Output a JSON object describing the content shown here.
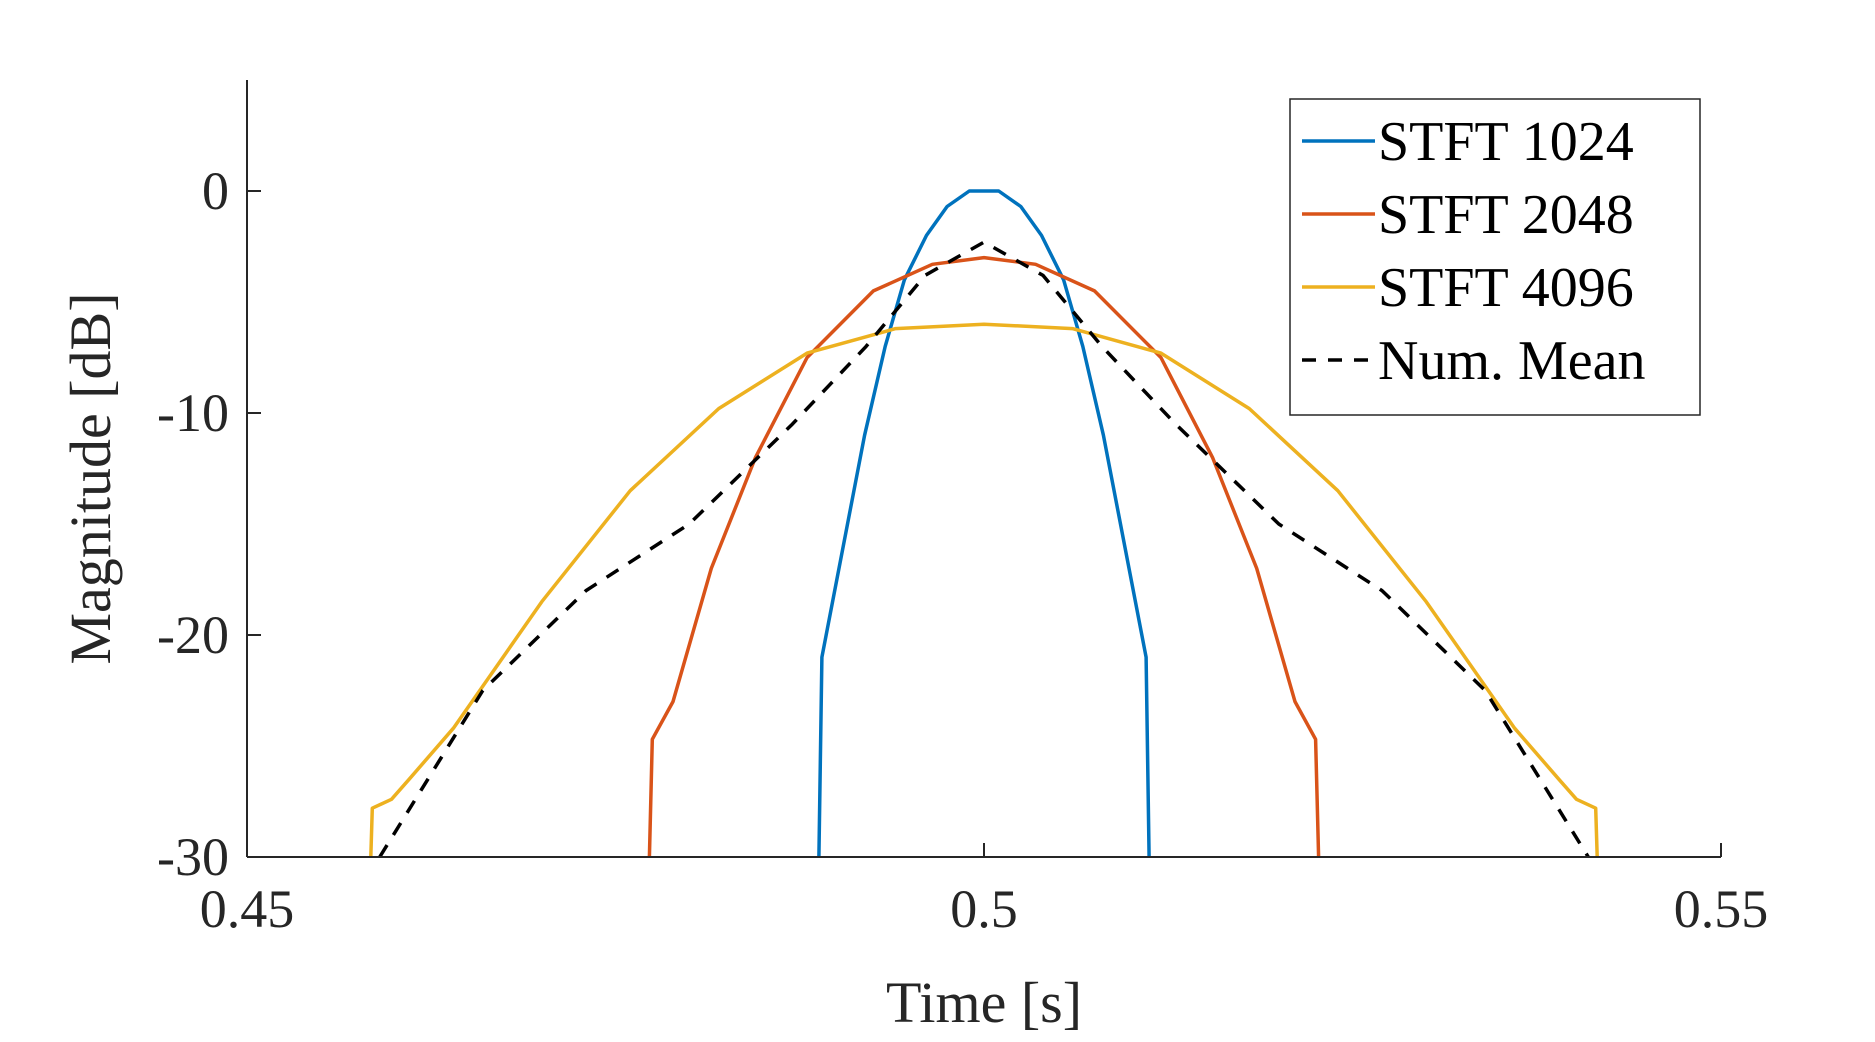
{
  "chart_data": {
    "type": "line",
    "xlabel": "Time [s]",
    "ylabel": "Magnitude [dB]",
    "xlim": [
      0.45,
      0.55
    ],
    "ylim": [
      -30,
      5
    ],
    "xticks": [
      0.45,
      0.5,
      0.55
    ],
    "xtick_labels": [
      "0.45",
      "0.5",
      "0.55"
    ],
    "yticks": [
      -30,
      -20,
      -10,
      0
    ],
    "ytick_labels": [
      "-30",
      "-20",
      "-10",
      "0"
    ],
    "grid": false,
    "legend_position": "top-right",
    "series": [
      {
        "name": "STFT 1024",
        "color": "#0072BD",
        "style": "solid",
        "x": [
          0.4888,
          0.489,
          0.4919,
          0.4933,
          0.4946,
          0.4961,
          0.4975,
          0.499,
          0.501,
          0.5025,
          0.5039,
          0.5054,
          0.5067,
          0.5081,
          0.511,
          0.5112
        ],
        "y": [
          -30,
          -21,
          -11,
          -7,
          -4,
          -2,
          -0.7,
          0,
          0,
          -0.7,
          -2,
          -4,
          -7,
          -11,
          -21,
          -30
        ]
      },
      {
        "name": "STFT 2048",
        "color": "#D95319",
        "style": "solid",
        "x": [
          0.4773,
          0.4775,
          0.4789,
          0.4815,
          0.4845,
          0.488,
          0.4925,
          0.4965,
          0.5,
          0.5035,
          0.5075,
          0.512,
          0.5155,
          0.5185,
          0.5211,
          0.5225,
          0.5227
        ],
        "y": [
          -30,
          -24.7,
          -23,
          -17,
          -12,
          -7.5,
          -4.5,
          -3.3,
          -3,
          -3.3,
          -4.5,
          -7.5,
          -12,
          -17,
          -23,
          -24.7,
          -30
        ]
      },
      {
        "name": "STFT 4096",
        "color": "#EDB120",
        "style": "solid",
        "x": [
          0.4584,
          0.4585,
          0.4598,
          0.461,
          0.464,
          0.47,
          0.476,
          0.482,
          0.488,
          0.494,
          0.5,
          0.506,
          0.512,
          0.518,
          0.524,
          0.53,
          0.536,
          0.539,
          0.5402,
          0.5415,
          0.5416
        ],
        "y": [
          -30,
          -27.8,
          -27.4,
          -26.5,
          -24.2,
          -18.5,
          -13.5,
          -9.8,
          -7.3,
          -6.2,
          -6,
          -6.2,
          -7.3,
          -9.8,
          -13.5,
          -18.5,
          -24.2,
          -26.5,
          -27.4,
          -27.8,
          -30
        ]
      },
      {
        "name": "Num. Mean",
        "color": "#000000",
        "style": "dashed",
        "x": [
          0.459,
          0.466,
          0.473,
          0.48,
          0.487,
          0.492,
          0.496,
          0.5,
          0.504,
          0.508,
          0.513,
          0.52,
          0.527,
          0.534,
          0.541
        ],
        "y": [
          -30,
          -22.5,
          -18,
          -15,
          -10.5,
          -7,
          -3.8,
          -2.3,
          -3.8,
          -7,
          -10.5,
          -15,
          -18,
          -22.5,
          -30
        ]
      }
    ]
  }
}
